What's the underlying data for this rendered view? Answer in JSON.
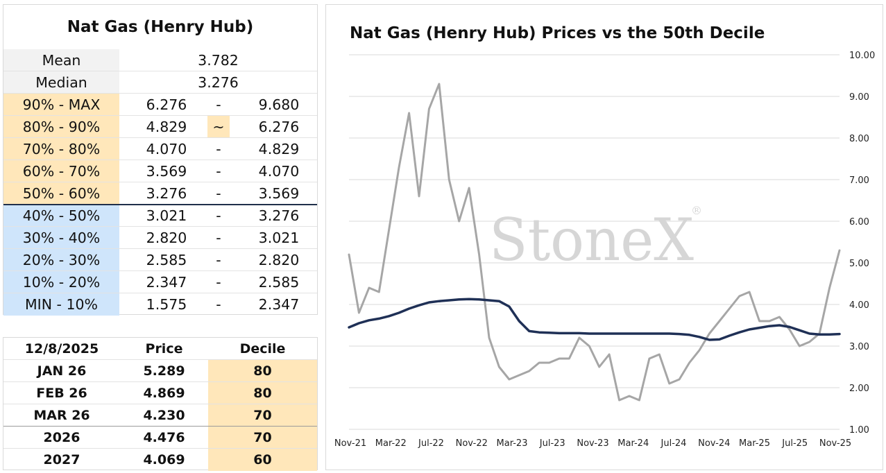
{
  "decile_table": {
    "title": "Nat Gas (Henry Hub)",
    "mean": {
      "label": "Mean",
      "value": "3.782"
    },
    "median": {
      "label": "Median",
      "value": "3.276"
    },
    "rows": [
      {
        "label": "90% - MAX",
        "low": "6.276",
        "sep": "-",
        "high": "9.680",
        "zone": "upper"
      },
      {
        "label": "80% - 90%",
        "low": "4.829",
        "sep": "~",
        "high": "6.276",
        "zone": "upper"
      },
      {
        "label": "70% - 80%",
        "low": "4.070",
        "sep": "-",
        "high": "4.829",
        "zone": "upper"
      },
      {
        "label": "60% - 70%",
        "low": "3.569",
        "sep": "-",
        "high": "4.070",
        "zone": "upper"
      },
      {
        "label": "50% - 60%",
        "low": "3.276",
        "sep": "-",
        "high": "3.569",
        "zone": "upper"
      },
      {
        "label": "40% - 50%",
        "low": "3.021",
        "sep": "-",
        "high": "3.276",
        "zone": "lower"
      },
      {
        "label": "30% - 40%",
        "low": "2.820",
        "sep": "-",
        "high": "3.021",
        "zone": "lower"
      },
      {
        "label": "20% - 30%",
        "low": "2.585",
        "sep": "-",
        "high": "2.820",
        "zone": "lower"
      },
      {
        "label": "10% - 20%",
        "low": "2.347",
        "sep": "-",
        "high": "2.585",
        "zone": "lower"
      },
      {
        "label": "MIN - 10%",
        "low": "1.575",
        "sep": "-",
        "high": "2.347",
        "zone": "lower"
      }
    ]
  },
  "price_table": {
    "headers": [
      "12/8/2025",
      "Price",
      "Decile"
    ],
    "rows": [
      {
        "contract": "JAN 26",
        "price": "5.289",
        "decile": "80"
      },
      {
        "contract": "FEB 26",
        "price": "4.869",
        "decile": "80"
      },
      {
        "contract": "MAR 26",
        "price": "4.230",
        "decile": "70"
      },
      {
        "contract": "2026",
        "price": "4.476",
        "decile": "70"
      },
      {
        "contract": "2027",
        "price": "4.069",
        "decile": "60"
      }
    ]
  },
  "chart_data": {
    "type": "line",
    "title": "Nat Gas (Henry Hub) Prices vs the 50th Decile",
    "watermark": "StoneX",
    "watermark_mark": "®",
    "xlabel": "",
    "ylabel": "",
    "ylim": [
      1.0,
      10.0
    ],
    "y_ticks": [
      "1.00",
      "2.00",
      "3.00",
      "4.00",
      "5.00",
      "6.00",
      "7.00",
      "8.00",
      "9.00",
      "10.00"
    ],
    "x_ticks": [
      "Nov-21",
      "Mar-22",
      "Jul-22",
      "Nov-22",
      "Mar-23",
      "Jul-23",
      "Nov-23",
      "Mar-24",
      "Jul-24",
      "Nov-24",
      "Mar-25",
      "Jul-25",
      "Nov-25"
    ],
    "xlim": [
      "2021-11",
      "2025-12"
    ],
    "grid": "horizontal",
    "colors": {
      "price": "#a6a6a6",
      "decile50": "#1f3056"
    },
    "series": [
      {
        "key": "price",
        "x": [
          "2021-11",
          "2021-12",
          "2022-01",
          "2022-02",
          "2022-03",
          "2022-04",
          "2022-05",
          "2022-06",
          "2022-07",
          "2022-08",
          "2022-09",
          "2022-10",
          "2022-11",
          "2022-12",
          "2023-01",
          "2023-02",
          "2023-03",
          "2023-04",
          "2023-05",
          "2023-06",
          "2023-07",
          "2023-08",
          "2023-09",
          "2023-10",
          "2023-11",
          "2023-12",
          "2024-01",
          "2024-02",
          "2024-03",
          "2024-04",
          "2024-05",
          "2024-06",
          "2024-07",
          "2024-08",
          "2024-09",
          "2024-10",
          "2024-11",
          "2024-12",
          "2025-01",
          "2025-02",
          "2025-03",
          "2025-04",
          "2025-05",
          "2025-06",
          "2025-07",
          "2025-08",
          "2025-09",
          "2025-10",
          "2025-11",
          "2025-12"
        ],
        "values": [
          5.2,
          3.8,
          4.4,
          4.3,
          5.8,
          7.3,
          8.6,
          6.6,
          8.7,
          9.3,
          7.0,
          6.0,
          6.8,
          5.2,
          3.2,
          2.5,
          2.2,
          2.3,
          2.4,
          2.6,
          2.6,
          2.7,
          2.7,
          3.2,
          3.0,
          2.5,
          2.8,
          1.7,
          1.8,
          1.7,
          2.7,
          2.8,
          2.1,
          2.2,
          2.6,
          2.9,
          3.3,
          3.6,
          3.9,
          4.2,
          4.3,
          3.6,
          3.6,
          3.7,
          3.4,
          3.0,
          3.1,
          3.3,
          4.4,
          5.3
        ]
      },
      {
        "key": "decile50",
        "x": [
          "2021-11",
          "2021-12",
          "2022-01",
          "2022-02",
          "2022-03",
          "2022-04",
          "2022-05",
          "2022-06",
          "2022-07",
          "2022-08",
          "2022-09",
          "2022-10",
          "2022-11",
          "2022-12",
          "2023-01",
          "2023-02",
          "2023-03",
          "2023-04",
          "2023-05",
          "2023-06",
          "2023-07",
          "2023-08",
          "2023-09",
          "2023-10",
          "2023-11",
          "2023-12",
          "2024-01",
          "2024-02",
          "2024-03",
          "2024-04",
          "2024-05",
          "2024-06",
          "2024-07",
          "2024-08",
          "2024-09",
          "2024-10",
          "2024-11",
          "2024-12",
          "2025-01",
          "2025-02",
          "2025-03",
          "2025-04",
          "2025-05",
          "2025-06",
          "2025-07",
          "2025-08",
          "2025-09",
          "2025-10",
          "2025-11",
          "2025-12"
        ],
        "values": [
          3.45,
          3.55,
          3.62,
          3.66,
          3.72,
          3.8,
          3.9,
          3.98,
          4.05,
          4.08,
          4.1,
          4.12,
          4.13,
          4.12,
          4.1,
          4.08,
          3.95,
          3.6,
          3.36,
          3.33,
          3.32,
          3.31,
          3.31,
          3.31,
          3.3,
          3.3,
          3.3,
          3.3,
          3.3,
          3.3,
          3.3,
          3.3,
          3.3,
          3.29,
          3.27,
          3.22,
          3.15,
          3.16,
          3.25,
          3.33,
          3.4,
          3.44,
          3.48,
          3.5,
          3.46,
          3.38,
          3.3,
          3.28,
          3.28,
          3.29
        ]
      }
    ]
  }
}
